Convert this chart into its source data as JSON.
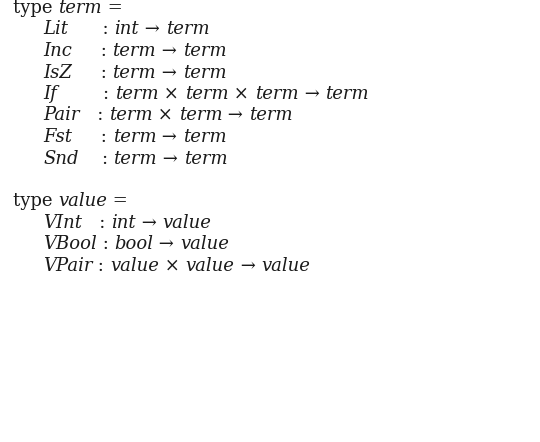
{
  "background_color": "#ffffff",
  "text_color": "#1a1a1a",
  "figsize": [
    5.4,
    4.42
  ],
  "dpi": 100,
  "font_size": 13,
  "lines": [
    {
      "row": 0,
      "indent": 0,
      "parts": [
        [
          "roman",
          "type "
        ],
        [
          "italic",
          "term"
        ],
        [
          "roman",
          " ="
        ]
      ]
    },
    {
      "row": 1,
      "indent": 1,
      "parts": [
        [
          "italic",
          "Lit"
        ],
        [
          "roman",
          "      : "
        ],
        [
          "italic",
          "int"
        ],
        [
          "roman",
          " → "
        ],
        [
          "italic",
          "term"
        ]
      ]
    },
    {
      "row": 2,
      "indent": 1,
      "parts": [
        [
          "italic",
          "Inc"
        ],
        [
          "roman",
          "     : "
        ],
        [
          "italic",
          "term"
        ],
        [
          "roman",
          " → "
        ],
        [
          "italic",
          "term"
        ]
      ]
    },
    {
      "row": 3,
      "indent": 1,
      "parts": [
        [
          "italic",
          "IsZ"
        ],
        [
          "roman",
          "     : "
        ],
        [
          "italic",
          "term"
        ],
        [
          "roman",
          " → "
        ],
        [
          "italic",
          "term"
        ]
      ]
    },
    {
      "row": 4,
      "indent": 1,
      "parts": [
        [
          "italic",
          "If"
        ],
        [
          "roman",
          "        : "
        ],
        [
          "italic",
          "term"
        ],
        [
          "roman",
          " × "
        ],
        [
          "italic",
          "term"
        ],
        [
          "roman",
          " × "
        ],
        [
          "italic",
          "term"
        ],
        [
          "roman",
          " → "
        ],
        [
          "italic",
          "term"
        ]
      ]
    },
    {
      "row": 5,
      "indent": 1,
      "parts": [
        [
          "italic",
          "Pair"
        ],
        [
          "roman",
          "   : "
        ],
        [
          "italic",
          "term"
        ],
        [
          "roman",
          " × "
        ],
        [
          "italic",
          "term"
        ],
        [
          "roman",
          " → "
        ],
        [
          "italic",
          "term"
        ]
      ]
    },
    {
      "row": 6,
      "indent": 1,
      "parts": [
        [
          "italic",
          "Fst"
        ],
        [
          "roman",
          "     : "
        ],
        [
          "italic",
          "term"
        ],
        [
          "roman",
          " → "
        ],
        [
          "italic",
          "term"
        ]
      ]
    },
    {
      "row": 7,
      "indent": 1,
      "parts": [
        [
          "italic",
          "Snd"
        ],
        [
          "roman",
          "    : "
        ],
        [
          "italic",
          "term"
        ],
        [
          "roman",
          " → "
        ],
        [
          "italic",
          "term"
        ]
      ]
    },
    {
      "row": 9,
      "indent": 0,
      "parts": [
        [
          "roman",
          "type "
        ],
        [
          "italic",
          "value"
        ],
        [
          "roman",
          " ="
        ]
      ]
    },
    {
      "row": 10,
      "indent": 1,
      "parts": [
        [
          "italic",
          "VInt"
        ],
        [
          "roman",
          "   : "
        ],
        [
          "italic",
          "int"
        ],
        [
          "roman",
          " → "
        ],
        [
          "italic",
          "value"
        ]
      ]
    },
    {
      "row": 11,
      "indent": 1,
      "parts": [
        [
          "italic",
          "VBool"
        ],
        [
          "roman",
          " : "
        ],
        [
          "italic",
          "bool"
        ],
        [
          "roman",
          " → "
        ],
        [
          "italic",
          "value"
        ]
      ]
    },
    {
      "row": 12,
      "indent": 1,
      "parts": [
        [
          "italic",
          "VPair"
        ],
        [
          "roman",
          " : "
        ],
        [
          "italic",
          "value"
        ],
        [
          "roman",
          " × "
        ],
        [
          "italic",
          "value"
        ],
        [
          "roman",
          " → "
        ],
        [
          "italic",
          "value"
        ]
      ]
    }
  ]
}
